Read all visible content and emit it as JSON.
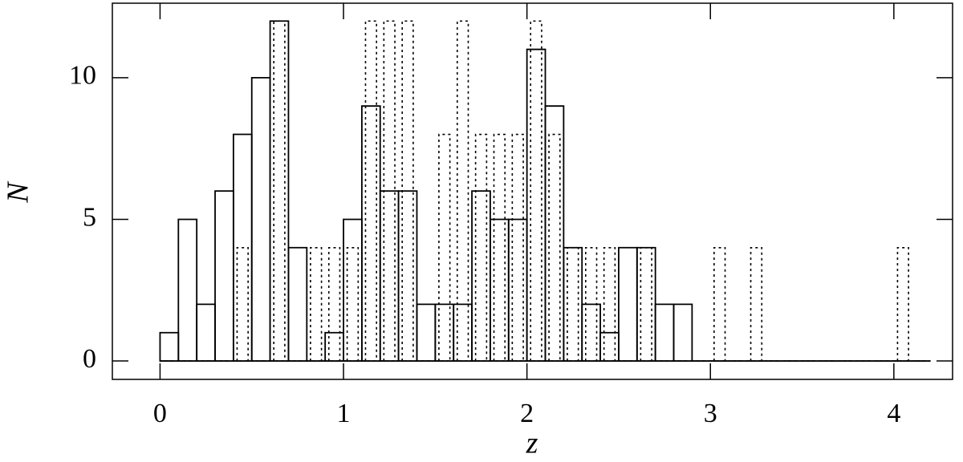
{
  "chart_data": {
    "type": "histogram",
    "xlabel": "z",
    "ylabel": "N",
    "bins": [
      0,
      0.1,
      0.2,
      0.3,
      0.4,
      0.5,
      0.6,
      0.7,
      0.8,
      0.9,
      1.0,
      1.1,
      1.2,
      1.3,
      1.4,
      1.5,
      1.6,
      1.7,
      1.8,
      1.9,
      2.0,
      2.1,
      2.2,
      2.3,
      2.4,
      2.5,
      2.6,
      2.7,
      2.8,
      2.9,
      3.0,
      3.1,
      3.2,
      3.3,
      3.4,
      3.5,
      3.6,
      3.7,
      3.8,
      3.9,
      4.0,
      4.1,
      4.2
    ],
    "series": [
      {
        "color": "#000000",
        "dash": "solid",
        "values": [
          1,
          5,
          2,
          6,
          8,
          10,
          12,
          4,
          0,
          1,
          5,
          9,
          6,
          6,
          2,
          2,
          2,
          6,
          5,
          5,
          11,
          9,
          4,
          2,
          1,
          4,
          4,
          2,
          2,
          0,
          0,
          0,
          0,
          0,
          0,
          0,
          0,
          0,
          0,
          0,
          0,
          0
        ]
      },
      {
        "color": "#000000",
        "dash": "dotted",
        "values": [
          0,
          0,
          0,
          0,
          4,
          0,
          12,
          0,
          4,
          4,
          4,
          12,
          12,
          12,
          0,
          8,
          12,
          8,
          8,
          8,
          12,
          8,
          4,
          4,
          4,
          0,
          4,
          0,
          0,
          0,
          4,
          0,
          4,
          0,
          0,
          0,
          0,
          0,
          0,
          0,
          4,
          0
        ]
      }
    ],
    "xlim": [
      -0.26,
      4.32
    ],
    "ylim": [
      -0.65,
      12.63
    ],
    "xticks": [
      0,
      1,
      2,
      3,
      4
    ],
    "yticks": [
      0,
      5,
      10
    ]
  }
}
